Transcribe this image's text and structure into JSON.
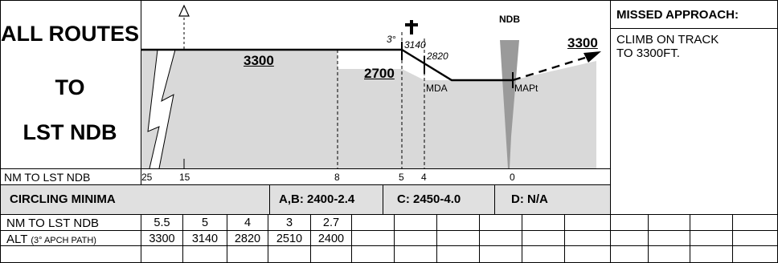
{
  "title_lines": [
    "ALL ROUTES",
    "TO",
    "LST NDB"
  ],
  "profile": {
    "ndb_label": "NDB",
    "altitudes": {
      "initial": "3300",
      "step": "2700",
      "missed": "3300"
    },
    "glide_angle": "3°",
    "fix_altitudes": [
      "3140",
      "2820"
    ],
    "mda_label": "MDA",
    "mapt_label": "MAPt",
    "distance_row_label": "NM TO LST NDB",
    "distance_ticks": [
      "25",
      "15",
      "8",
      "5",
      "4",
      "0"
    ]
  },
  "missed_approach": {
    "heading": "MISSED APPROACH:",
    "text_lines": [
      "CLIMB ON TRACK",
      "TO 3300FT."
    ]
  },
  "circling": {
    "label": "CIRCLING MINIMA",
    "ab": "A,B: 2400-2.4",
    "c": "C: 2450-4.0",
    "d": "D:  N/A"
  },
  "table": {
    "row1_label": "NM TO LST NDB",
    "row2_label": "ALT",
    "row2_label_small": "(3° APCH PATH)",
    "distances": [
      "5.5",
      "5",
      "4",
      "3",
      "2.7"
    ],
    "altitudes": [
      "3300",
      "3140",
      "2820",
      "2510",
      "2400"
    ]
  },
  "colors": {
    "terrain": "#d9d9d9",
    "circling_bg": "#e0e0e0",
    "ndb_cone": "#9a9a9a"
  },
  "icons": [
    "triangle-icon",
    "cross-obstacle-icon",
    "arrow-icon"
  ]
}
